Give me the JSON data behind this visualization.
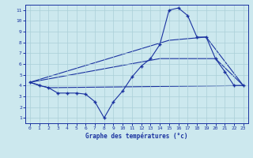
{
  "bg_color": "#cce8ee",
  "line_color": "#1a32a0",
  "xlim": [
    -0.5,
    23.5
  ],
  "ylim": [
    0.5,
    11.5
  ],
  "xticks": [
    0,
    1,
    2,
    3,
    4,
    5,
    6,
    7,
    8,
    9,
    10,
    11,
    12,
    13,
    14,
    15,
    16,
    17,
    18,
    19,
    20,
    21,
    22,
    23
  ],
  "yticks": [
    1,
    2,
    3,
    4,
    5,
    6,
    7,
    8,
    9,
    10,
    11
  ],
  "line1_x": [
    0,
    1,
    2,
    3,
    4,
    5,
    6,
    7,
    8,
    9,
    10,
    11,
    12,
    13,
    14,
    15,
    16,
    17,
    18,
    19,
    20,
    21,
    22,
    23
  ],
  "line1_y": [
    4.3,
    4.0,
    3.8,
    3.3,
    3.3,
    3.3,
    3.2,
    2.5,
    1.0,
    2.5,
    3.5,
    4.8,
    5.8,
    6.5,
    7.8,
    11.0,
    11.2,
    10.5,
    8.5,
    8.5,
    6.5,
    5.3,
    4.0,
    4.0
  ],
  "line2_x": [
    0,
    2,
    23
  ],
  "line2_y": [
    4.3,
    3.8,
    4.0
  ],
  "line3_x": [
    0,
    15,
    19,
    23
  ],
  "line3_y": [
    4.3,
    8.2,
    8.5,
    4.0
  ],
  "line4_x": [
    0,
    14,
    20,
    23
  ],
  "line4_y": [
    4.3,
    6.5,
    6.5,
    4.0
  ],
  "grid_color": "#aacfd8",
  "xlabel": "Graphe des températures (°c)"
}
